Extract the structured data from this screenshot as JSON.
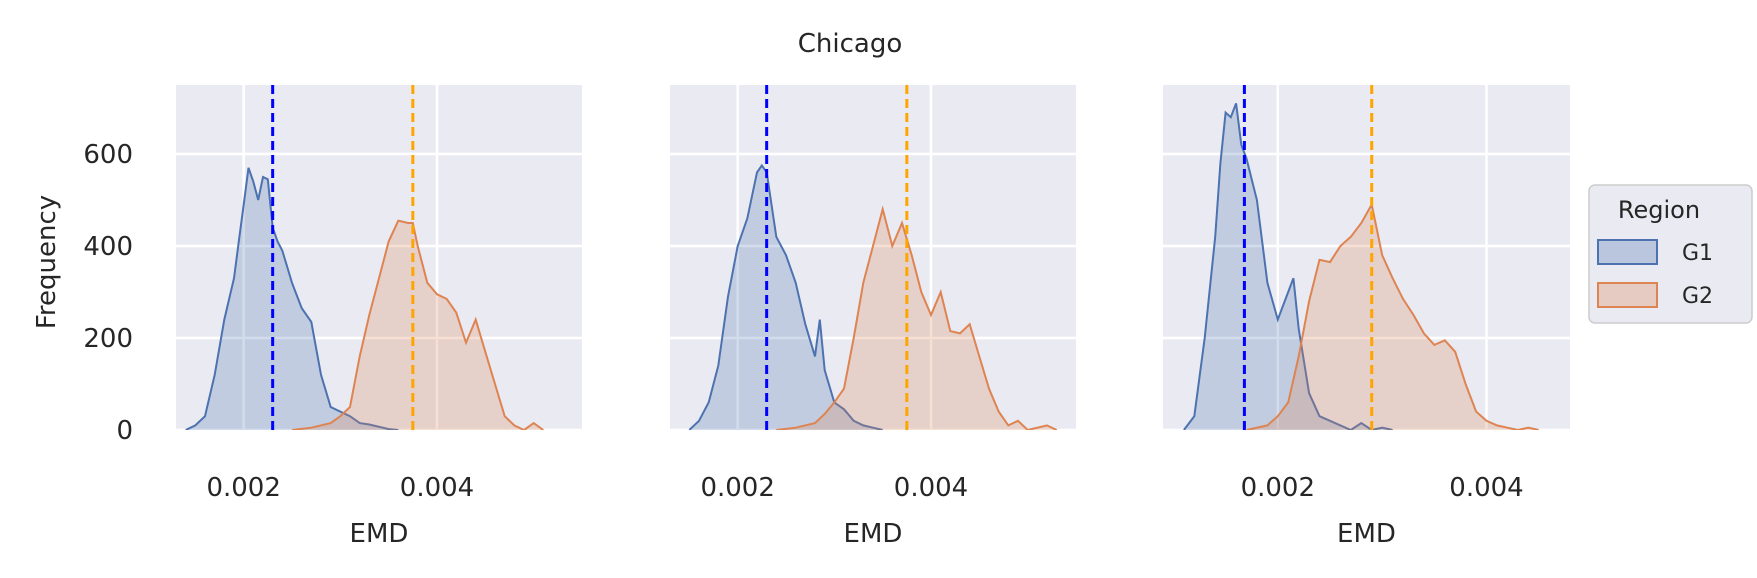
{
  "figure": {
    "suptitle": "Chicago",
    "ylabel": "Frequency"
  },
  "legend": {
    "title": "Region",
    "placement": "right",
    "entries": [
      {
        "label": "G1",
        "fill": "#4c72b0",
        "line": "#4c72b0"
      },
      {
        "label": "G2",
        "fill": "#dd8452",
        "line": "#dd8452"
      }
    ]
  },
  "colors": {
    "panel_bg": "#eaeaf2",
    "grid": "#ffffff",
    "g1": "#4c72b0",
    "g2": "#dd8452",
    "g1_mean_line": "#0000ff",
    "g2_mean_line": "#ffa500"
  },
  "chart_data": [
    {
      "type": "area",
      "subtype": "kde",
      "title": "",
      "xlabel": "EMD",
      "ylabel": "Frequency",
      "xlim": [
        0.0013,
        0.0055
      ],
      "ylim": [
        0,
        750
      ],
      "xticks": [
        0.002,
        0.004
      ],
      "xtick_labels": [
        "0.002",
        "0.004"
      ],
      "yticks": [
        0,
        200,
        400,
        600
      ],
      "ytick_labels": [
        "0",
        "200",
        "400",
        "600"
      ],
      "grid": true,
      "series": [
        {
          "name": "G1",
          "points": [
            [
              0.0014,
              0
            ],
            [
              0.0015,
              10
            ],
            [
              0.0016,
              30
            ],
            [
              0.0017,
              120
            ],
            [
              0.0018,
              240
            ],
            [
              0.0019,
              330
            ],
            [
              0.00195,
              410
            ],
            [
              0.002,
              490
            ],
            [
              0.00205,
              570
            ],
            [
              0.0021,
              540
            ],
            [
              0.00215,
              500
            ],
            [
              0.0022,
              550
            ],
            [
              0.00225,
              545
            ],
            [
              0.0023,
              440
            ],
            [
              0.00235,
              410
            ],
            [
              0.0024,
              390
            ],
            [
              0.0025,
              320
            ],
            [
              0.0026,
              265
            ],
            [
              0.0027,
              235
            ],
            [
              0.0028,
              120
            ],
            [
              0.0029,
              50
            ],
            [
              0.003,
              40
            ],
            [
              0.0031,
              30
            ],
            [
              0.0032,
              15
            ],
            [
              0.0033,
              12
            ],
            [
              0.0035,
              2
            ],
            [
              0.0036,
              0
            ]
          ],
          "mean": 0.0023
        },
        {
          "name": "G2",
          "points": [
            [
              0.0025,
              0
            ],
            [
              0.0027,
              5
            ],
            [
              0.0029,
              15
            ],
            [
              0.003,
              30
            ],
            [
              0.0031,
              50
            ],
            [
              0.0032,
              160
            ],
            [
              0.0033,
              250
            ],
            [
              0.0034,
              330
            ],
            [
              0.0035,
              410
            ],
            [
              0.0036,
              455
            ],
            [
              0.0037,
              450
            ],
            [
              0.00375,
              450
            ],
            [
              0.0038,
              400
            ],
            [
              0.0039,
              320
            ],
            [
              0.004,
              295
            ],
            [
              0.0041,
              285
            ],
            [
              0.0042,
              255
            ],
            [
              0.0043,
              190
            ],
            [
              0.0044,
              240
            ],
            [
              0.0045,
              170
            ],
            [
              0.0046,
              100
            ],
            [
              0.0047,
              30
            ],
            [
              0.0048,
              10
            ],
            [
              0.0049,
              0
            ],
            [
              0.005,
              15
            ],
            [
              0.0051,
              0
            ]
          ],
          "mean": 0.00375
        }
      ]
    },
    {
      "type": "area",
      "subtype": "kde",
      "title": "",
      "xlabel": "EMD",
      "ylabel": "",
      "xlim": [
        0.0013,
        0.0055
      ],
      "ylim": [
        0,
        750
      ],
      "xticks": [
        0.002,
        0.004
      ],
      "xtick_labels": [
        "0.002",
        "0.004"
      ],
      "yticks": [
        0,
        200,
        400,
        600
      ],
      "ytick_labels": [],
      "grid": true,
      "series": [
        {
          "name": "G1",
          "points": [
            [
              0.0015,
              0
            ],
            [
              0.0016,
              20
            ],
            [
              0.0017,
              60
            ],
            [
              0.0018,
              140
            ],
            [
              0.0019,
              290
            ],
            [
              0.002,
              400
            ],
            [
              0.0021,
              460
            ],
            [
              0.0022,
              560
            ],
            [
              0.00225,
              575
            ],
            [
              0.0023,
              560
            ],
            [
              0.0024,
              420
            ],
            [
              0.0025,
              380
            ],
            [
              0.0026,
              320
            ],
            [
              0.0027,
              230
            ],
            [
              0.0028,
              160
            ],
            [
              0.00285,
              240
            ],
            [
              0.0029,
              130
            ],
            [
              0.003,
              60
            ],
            [
              0.0031,
              45
            ],
            [
              0.0032,
              20
            ],
            [
              0.0033,
              10
            ],
            [
              0.0034,
              5
            ],
            [
              0.0035,
              0
            ]
          ],
          "mean": 0.0023
        },
        {
          "name": "G2",
          "points": [
            [
              0.0024,
              0
            ],
            [
              0.0026,
              5
            ],
            [
              0.0028,
              15
            ],
            [
              0.0029,
              35
            ],
            [
              0.003,
              60
            ],
            [
              0.0031,
              90
            ],
            [
              0.0032,
              200
            ],
            [
              0.0033,
              320
            ],
            [
              0.0034,
              400
            ],
            [
              0.0035,
              480
            ],
            [
              0.0036,
              400
            ],
            [
              0.0037,
              450
            ],
            [
              0.0038,
              380
            ],
            [
              0.0039,
              300
            ],
            [
              0.004,
              250
            ],
            [
              0.0041,
              300
            ],
            [
              0.0042,
              215
            ],
            [
              0.0043,
              210
            ],
            [
              0.0044,
              230
            ],
            [
              0.0045,
              160
            ],
            [
              0.0046,
              90
            ],
            [
              0.0047,
              40
            ],
            [
              0.0048,
              10
            ],
            [
              0.0049,
              20
            ],
            [
              0.005,
              0
            ],
            [
              0.0052,
              10
            ],
            [
              0.0053,
              0
            ]
          ],
          "mean": 0.00375
        }
      ]
    },
    {
      "type": "area",
      "subtype": "kde",
      "title": "",
      "xlabel": "EMD",
      "ylabel": "",
      "xlim": [
        0.0009,
        0.0048
      ],
      "ylim": [
        0,
        750
      ],
      "xticks": [
        0.002,
        0.004
      ],
      "xtick_labels": [
        "0.002",
        "0.004"
      ],
      "yticks": [
        0,
        200,
        400,
        600
      ],
      "ytick_labels": [],
      "grid": true,
      "series": [
        {
          "name": "G1",
          "points": [
            [
              0.0011,
              0
            ],
            [
              0.0012,
              30
            ],
            [
              0.0013,
              200
            ],
            [
              0.0014,
              420
            ],
            [
              0.00145,
              580
            ],
            [
              0.0015,
              690
            ],
            [
              0.00155,
              680
            ],
            [
              0.0016,
              710
            ],
            [
              0.00165,
              620
            ],
            [
              0.0017,
              590
            ],
            [
              0.0018,
              500
            ],
            [
              0.0019,
              320
            ],
            [
              0.002,
              240
            ],
            [
              0.0021,
              300
            ],
            [
              0.00215,
              330
            ],
            [
              0.0022,
              220
            ],
            [
              0.0023,
              80
            ],
            [
              0.0024,
              30
            ],
            [
              0.0025,
              20
            ],
            [
              0.0026,
              10
            ],
            [
              0.0027,
              0
            ],
            [
              0.0028,
              15
            ],
            [
              0.0029,
              0
            ],
            [
              0.003,
              5
            ],
            [
              0.0031,
              0
            ]
          ],
          "mean": 0.00168
        },
        {
          "name": "G2",
          "points": [
            [
              0.0017,
              0
            ],
            [
              0.0019,
              10
            ],
            [
              0.002,
              30
            ],
            [
              0.0021,
              60
            ],
            [
              0.0022,
              160
            ],
            [
              0.0023,
              280
            ],
            [
              0.0024,
              370
            ],
            [
              0.0025,
              365
            ],
            [
              0.0026,
              400
            ],
            [
              0.0027,
              420
            ],
            [
              0.0028,
              450
            ],
            [
              0.0029,
              490
            ],
            [
              0.003,
              380
            ],
            [
              0.0031,
              330
            ],
            [
              0.0032,
              285
            ],
            [
              0.0033,
              250
            ],
            [
              0.0034,
              210
            ],
            [
              0.0035,
              185
            ],
            [
              0.0036,
              195
            ],
            [
              0.0037,
              170
            ],
            [
              0.0038,
              100
            ],
            [
              0.0039,
              40
            ],
            [
              0.004,
              20
            ],
            [
              0.0041,
              10
            ],
            [
              0.0042,
              5
            ],
            [
              0.0043,
              0
            ],
            [
              0.0044,
              5
            ],
            [
              0.0045,
              0
            ]
          ],
          "mean": 0.0029
        }
      ]
    }
  ]
}
